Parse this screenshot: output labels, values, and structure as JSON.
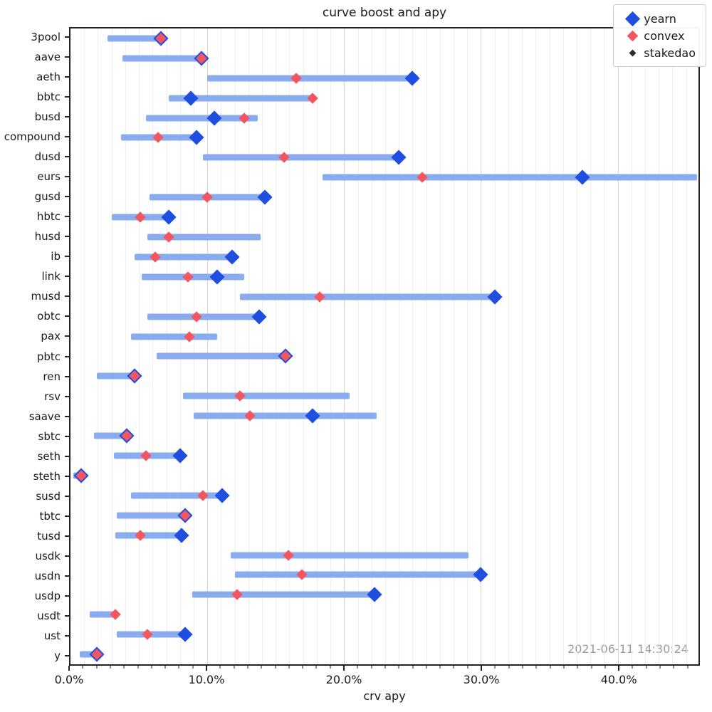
{
  "title": "curve boost and apy",
  "timestamp": "2021-06-11 14:30:24",
  "x_axis": {
    "label": "crv apy",
    "tick_values": [
      0,
      10,
      20,
      30,
      40
    ],
    "tick_labels": [
      "0.0%",
      "10.0%",
      "20.0%",
      "30.0%",
      "40.0%"
    ],
    "minor_tick_step": 1
  },
  "legend": {
    "items": [
      {
        "label": "yearn",
        "series": "yearn"
      },
      {
        "label": "convex",
        "series": "convex"
      },
      {
        "label": "stakedao",
        "series": "stakedao"
      }
    ]
  },
  "colors": {
    "bar": "#8aacee",
    "yearn": "#1e4fe0",
    "convex": "#f4565f",
    "stakedao": "#2e2e2e",
    "grid_minor": "#eeeeee",
    "grid_major": "#d4d4d4",
    "frame": "#222222",
    "timestamp_text": "#9b9b9b"
  },
  "chart_data": {
    "type": "scatter",
    "subtype": "range-dot-plot",
    "title": "curve boost and apy",
    "xlabel": "crv apy",
    "ylabel": "",
    "xlim": [
      0,
      45.9
    ],
    "x_unit": "percent",
    "grid": "vertical, minor every 1%, major every 10%",
    "legend_position": "upper right",
    "categories": [
      "3pool",
      "aave",
      "aeth",
      "bbtc",
      "busd",
      "compound",
      "dusd",
      "eurs",
      "gusd",
      "hbtc",
      "husd",
      "ib",
      "link",
      "musd",
      "obtc",
      "pax",
      "pbtc",
      "ren",
      "rsv",
      "saave",
      "sbtc",
      "seth",
      "steth",
      "susd",
      "tbtc",
      "tusd",
      "usdk",
      "usdn",
      "usdp",
      "usdt",
      "ust",
      "y"
    ],
    "ranges": [
      [
        2.7,
        6.9
      ],
      [
        3.8,
        9.7
      ],
      [
        10.0,
        25.4
      ],
      [
        7.2,
        17.8
      ],
      [
        5.5,
        13.7
      ],
      [
        3.7,
        9.4
      ],
      [
        9.7,
        24.2
      ],
      [
        18.4,
        45.8
      ],
      [
        5.8,
        14.5
      ],
      [
        3.0,
        7.5
      ],
      [
        5.6,
        13.9
      ],
      [
        4.7,
        12.1
      ],
      [
        5.2,
        12.7
      ],
      [
        12.4,
        31.0
      ],
      [
        5.6,
        13.9
      ],
      [
        4.4,
        10.7
      ],
      [
        6.3,
        15.8
      ],
      [
        1.9,
        4.9
      ],
      [
        8.2,
        20.4
      ],
      [
        9.0,
        22.4
      ],
      [
        1.7,
        4.5
      ],
      [
        3.2,
        8.2
      ],
      [
        0.2,
        1.0
      ],
      [
        4.4,
        11.4
      ],
      [
        3.4,
        8.6
      ],
      [
        3.3,
        8.3
      ],
      [
        11.7,
        29.1
      ],
      [
        12.0,
        30.1
      ],
      [
        8.9,
        22.3
      ],
      [
        1.4,
        3.3
      ],
      [
        3.4,
        8.6
      ],
      [
        0.7,
        2.2
      ]
    ],
    "series": [
      {
        "name": "yearn",
        "values": [
          6.6,
          9.6,
          25.0,
          8.8,
          10.5,
          9.2,
          24.0,
          37.4,
          14.2,
          7.2,
          null,
          11.8,
          10.7,
          31.0,
          13.8,
          null,
          15.7,
          4.7,
          null,
          17.7,
          4.1,
          8.0,
          0.8,
          11.1,
          8.4,
          8.1,
          null,
          30.0,
          22.2,
          null,
          8.4,
          1.9
        ]
      },
      {
        "name": "convex",
        "values": [
          6.6,
          9.6,
          16.5,
          17.7,
          12.7,
          6.4,
          15.6,
          25.7,
          10.0,
          5.1,
          7.2,
          6.2,
          8.6,
          18.2,
          9.2,
          8.7,
          15.7,
          4.7,
          12.4,
          13.1,
          4.1,
          5.5,
          0.8,
          9.7,
          8.4,
          5.1,
          15.9,
          16.9,
          12.2,
          3.3,
          5.6,
          1.9
        ]
      },
      {
        "name": "stakedao",
        "values": [
          null,
          null,
          null,
          null,
          null,
          null,
          null,
          null,
          null,
          null,
          null,
          null,
          null,
          null,
          null,
          null,
          null,
          null,
          null,
          null,
          null,
          null,
          null,
          null,
          null,
          null,
          null,
          null,
          null,
          null,
          null,
          null
        ]
      }
    ]
  }
}
